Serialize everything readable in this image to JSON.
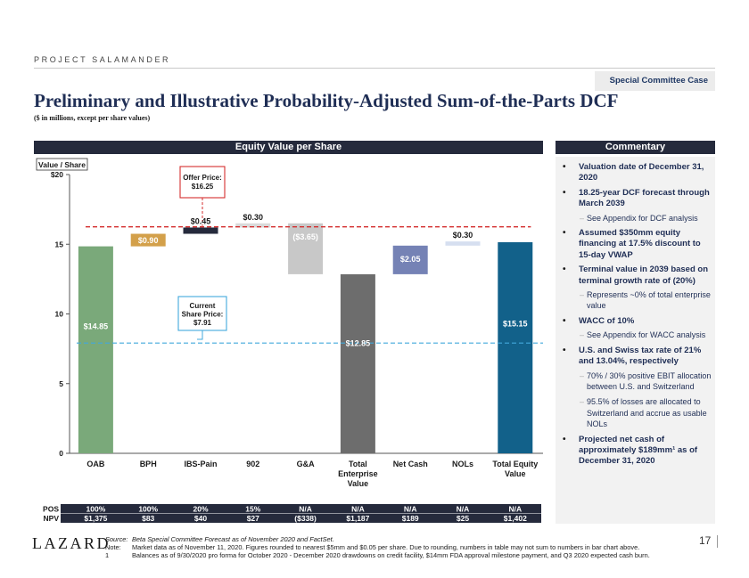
{
  "header": {
    "project": "PROJECT SALAMANDER",
    "case_badge": "Special Committee Case",
    "title": "Preliminary and Illustrative Probability-Adjusted Sum-of-the-Parts DCF",
    "subtitle": "($ in millions, except per share values)"
  },
  "chart_panel": {
    "title": "Equity Value per Share"
  },
  "chart_data": {
    "type": "bar",
    "subtype": "waterfall",
    "title": "Equity Value per Share",
    "y_axis_label": "Value / Share",
    "ylim": [
      0,
      20
    ],
    "y_ticks": [
      0,
      5,
      10,
      15
    ],
    "y_tick_labels": [
      "0",
      "5",
      "10",
      "15"
    ],
    "y_top_label": "$20",
    "categories": [
      "OAB",
      "BPH",
      "IBS-Pain",
      "902",
      "G&A",
      "Total Enterprise Value",
      "Net Cash",
      "NOLs",
      "Total Equity Value"
    ],
    "category_lines": [
      [
        "OAB"
      ],
      [
        "BPH"
      ],
      [
        "IBS-Pain"
      ],
      [
        "902"
      ],
      [
        "G&A"
      ],
      [
        "Total",
        "Enterprise",
        "Value"
      ],
      [
        "Net Cash"
      ],
      [
        "NOLs"
      ],
      [
        "Total Equity",
        "Value"
      ]
    ],
    "bars": [
      {
        "name": "OAB",
        "start": 0,
        "end": 14.85,
        "label": "$14.85",
        "color": "#7aa97a",
        "label_pos": "inside",
        "label_color": "#ffffff"
      },
      {
        "name": "BPH",
        "start": 14.85,
        "end": 15.75,
        "label": "$0.90",
        "color": "#d3a04a",
        "label_pos": "inside",
        "label_color": "#ffffff"
      },
      {
        "name": "IBS-Pain",
        "start": 15.75,
        "end": 16.2,
        "label": "$0.45",
        "color": "#252a3c",
        "label_pos": "above",
        "label_color": "#1a1a1a"
      },
      {
        "name": "902",
        "start": 16.2,
        "end": 16.5,
        "label": "$0.30",
        "color": "#d9d9d9",
        "label_pos": "above",
        "label_color": "#1a1a1a"
      },
      {
        "name": "G&A",
        "start": 16.5,
        "end": 12.85,
        "label": "($3.65)",
        "color": "#c8c8c8",
        "label_pos": "inside",
        "label_color": "#ffffff"
      },
      {
        "name": "Total Enterprise Value",
        "start": 0,
        "end": 12.85,
        "label": "$12.85",
        "color": "#6d6d6d",
        "label_pos": "inside",
        "label_color": "#ffffff"
      },
      {
        "name": "Net Cash",
        "start": 12.85,
        "end": 14.9,
        "label": "$2.05",
        "color": "#7582b5",
        "label_pos": "inside",
        "label_color": "#ffffff"
      },
      {
        "name": "NOLs",
        "start": 14.9,
        "end": 15.2,
        "label": "$0.30",
        "color": "#d6dff0",
        "label_pos": "above",
        "label_color": "#1a1a1a"
      },
      {
        "name": "Total Equity Value",
        "start": 0,
        "end": 15.15,
        "label": "$15.15",
        "color": "#12618a",
        "label_pos": "inside",
        "label_color": "#ffffff"
      }
    ],
    "reference_lines": [
      {
        "name": "Offer Price",
        "value": 16.25,
        "label_lines": [
          "Offer Price:",
          "$16.25"
        ],
        "color": "#d42e2e",
        "style": "dashed"
      },
      {
        "name": "Current Share Price",
        "value": 7.91,
        "label_lines": [
          "Current",
          "Share Price:",
          "$7.91"
        ],
        "color": "#42a8dc",
        "style": "dashed"
      }
    ],
    "table": {
      "rows": [
        {
          "label": "POS",
          "values": [
            "100%",
            "100%",
            "20%",
            "15%",
            "N/A",
            "N/A",
            "N/A",
            "N/A",
            "N/A"
          ]
        },
        {
          "label": "NPV",
          "values": [
            "$1,375",
            "$83",
            "$40",
            "$27",
            "($338)",
            "$1,187",
            "$189",
            "$25",
            "$1,402"
          ]
        }
      ]
    }
  },
  "commentary": {
    "title": "Commentary",
    "items": [
      {
        "level": 1,
        "text": "Valuation date of December 31, 2020"
      },
      {
        "level": 1,
        "text": "18.25-year DCF forecast through March 2039"
      },
      {
        "level": 2,
        "text": "See Appendix for DCF analysis"
      },
      {
        "level": 1,
        "text": "Assumed $350mm equity financing at 17.5% discount to 15-day VWAP"
      },
      {
        "level": 1,
        "text": "Terminal value in 2039 based on terminal growth rate of (20%)"
      },
      {
        "level": 2,
        "text": "Represents ~0% of total enterprise value"
      },
      {
        "level": 1,
        "text": "WACC of 10%"
      },
      {
        "level": 2,
        "text": "See Appendix for WACC analysis"
      },
      {
        "level": 1,
        "text": "U.S. and Swiss tax rate of 21% and 13.04%, respectively"
      },
      {
        "level": 2,
        "text": "70% / 30% positive EBIT allocation between U.S. and Switzerland"
      },
      {
        "level": 2,
        "text": "95.5% of losses are allocated to Switzerland and accrue as usable NOLs"
      },
      {
        "level": 1,
        "text": "Projected net cash of approximately $189mm¹ as of December 31, 2020"
      }
    ]
  },
  "footer": {
    "logo": "LAZARD",
    "source_label": "Source:",
    "source_text": "Beta Special Committee Forecast as of November 2020 and FactSet.",
    "note_label": "Note:",
    "note_text": "Market data as of November 11, 2020. Figures rounded to nearest $5mm and $0.05 per share. Due to rounding, numbers in table may not sum to numbers in bar chart above.",
    "footnote_label": "1",
    "footnote_text": "Balances as of 9/30/2020 pro forma for October 2020 - December 2020 drawdowns on credit facility, $14mm FDA approval milestone payment, and Q3 2020 expected cash burn.",
    "page_number": "17"
  }
}
